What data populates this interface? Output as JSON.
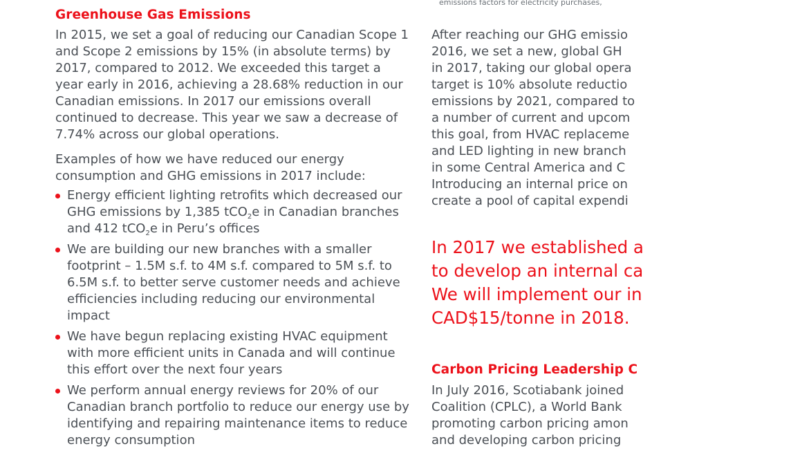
{
  "left": {
    "heading": "Greenhouse Gas Emissions",
    "para1": "In 2015, we set a goal of reducing our Canadian Scope 1 and Scope 2 emissions by 15% (in absolute terms) by 2017, compared to 2012. We exceeded this target a year early in 2016, achieving a 28.68% reduction in our Canadian emissions. In 2017 our emissions overall continued to decrease. This year we saw a decrease of 7.74% across our global operations.",
    "para2": "Examples of how we have reduced our energy consumption and GHG emissions in 2017 include:",
    "bullet1": {
      "part1": "Energy efficient lighting retrofits which decreased our GHG emissions by 1,385 tCO",
      "sub1": "2",
      "part2": "e in Canadian branches and 412 tCO",
      "sub2": "2",
      "part3": "e in Peru’s offices"
    },
    "bullet2": "We are building our new branches with a smaller footprint – 1.5M s.f. to 4M s.f. compared to 5M s.f. to 6.5M s.f. to better serve customer needs and achieve efficiencies including reducing our environmental impact",
    "bullet3": "We have begun replacing existing HVAC equipment with more efficient units in Canada and will continue this effort over the next four years",
    "bullet4": "We perform annual energy reviews for 20% of our Canadian branch portfolio to reduce our energy use by identifying and repairing maintenance items to reduce energy consumption"
  },
  "right": {
    "footnote": "emissions factors for electricity purchases,",
    "lines": [
      "After reaching our GHG emissio",
      "2016, we set a new, global GH",
      "in 2017, taking our global opera",
      "target is 10% absolute reductio",
      "emissions by 2021, compared to",
      "a number of current and upcom",
      "this goal, from HVAC replaceme",
      "and LED lighting in new branch",
      "in some Central America and C",
      "Introducing an internal price on",
      "create a pool of capital expendi"
    ],
    "quote_lines": [
      "In 2017 we established a",
      "to develop an internal ca",
      "We will implement our in",
      "CAD$15/tonne in 2018."
    ],
    "heading2": "Carbon Pricing Leadership C",
    "lines2": [
      "In July 2016, Scotiabank joined",
      "Coalition (CPLC), a World Bank",
      "promoting carbon pricing amon",
      "and developing carbon pricing"
    ]
  }
}
